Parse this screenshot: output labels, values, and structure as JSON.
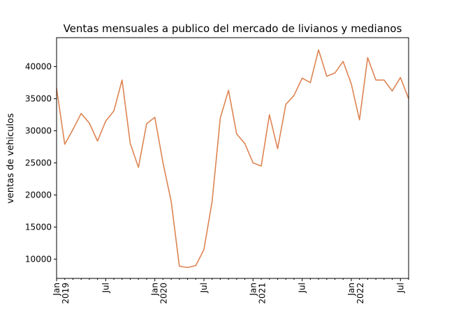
{
  "chart_data": {
    "type": "line",
    "title": "Ventas mensuales a publico del mercado de livianos y medianos",
    "xlabel": "",
    "ylabel": "ventas de vehiculos",
    "ylim": [
      7000,
      44500
    ],
    "yticks": [
      10000,
      15000,
      20000,
      25000,
      30000,
      35000,
      40000
    ],
    "x_major_ticks": [
      {
        "index": 0,
        "line1": "Jan",
        "line2": "2019"
      },
      {
        "index": 6,
        "line1": "Jul",
        "line2": ""
      },
      {
        "index": 12,
        "line1": "Jan",
        "line2": "2020"
      },
      {
        "index": 18,
        "line1": "Jul",
        "line2": ""
      },
      {
        "index": 24,
        "line1": "Jan",
        "line2": "2021"
      },
      {
        "index": 30,
        "line1": "Jul",
        "line2": ""
      },
      {
        "index": 36,
        "line1": "Jan",
        "line2": "2022"
      },
      {
        "index": 42,
        "line1": "Jul",
        "line2": ""
      }
    ],
    "grid": false,
    "series": [
      {
        "name": "",
        "color": "#dd8452",
        "x": [
          "2019-01",
          "2019-02",
          "2019-03",
          "2019-04",
          "2019-05",
          "2019-06",
          "2019-07",
          "2019-08",
          "2019-09",
          "2019-10",
          "2019-11",
          "2019-12",
          "2020-01",
          "2020-02",
          "2020-03",
          "2020-04",
          "2020-05",
          "2020-06",
          "2020-07",
          "2020-08",
          "2020-09",
          "2020-10",
          "2020-11",
          "2020-12",
          "2021-01",
          "2021-02",
          "2021-03",
          "2021-04",
          "2021-05",
          "2021-06",
          "2021-07",
          "2021-08",
          "2021-09",
          "2021-10",
          "2021-11",
          "2021-12",
          "2022-01",
          "2022-02",
          "2022-03",
          "2022-04",
          "2022-05",
          "2022-06",
          "2022-07",
          "2022-08"
        ],
        "values": [
          36600,
          27900,
          30200,
          32700,
          31200,
          28400,
          31500,
          33100,
          37900,
          28000,
          24300,
          31100,
          32100,
          25000,
          19000,
          8900,
          8700,
          9000,
          11500,
          19000,
          32000,
          36300,
          29500,
          28000,
          25000,
          24500,
          32500,
          27200,
          34100,
          35500,
          38200,
          37500,
          42600,
          38500,
          39000,
          40800,
          37300,
          31700,
          41400,
          37900,
          37900,
          36200,
          38300,
          35000
        ]
      }
    ]
  }
}
